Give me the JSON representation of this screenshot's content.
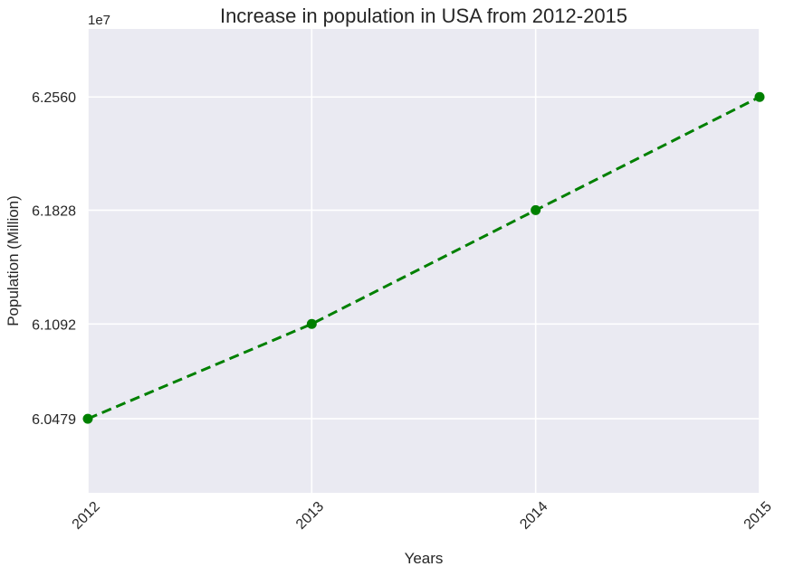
{
  "chart_data": {
    "type": "line",
    "title": "Increase in population in USA from 2012-2015",
    "xlabel": "Years",
    "ylabel": "Population (Million)",
    "y_offset_label": "1e7",
    "x": [
      2012,
      2013,
      2014,
      2015
    ],
    "x_tick_labels": [
      "2012",
      "2013",
      "2014",
      "2015"
    ],
    "series": [
      {
        "values": [
          60479000,
          61092000,
          61828000,
          62560000
        ]
      }
    ],
    "y_ticks": [
      60479000,
      61092000,
      61828000,
      62560000
    ],
    "y_tick_labels": [
      "6.0479",
      "6.1092",
      "6.1828",
      "6.2560"
    ],
    "xlim": [
      2012,
      2015
    ],
    "ylim": [
      60000000,
      63000000
    ],
    "grid": true,
    "line_style": "dashed",
    "marker": "circle",
    "colors": {
      "series": "#008000",
      "background": "#eaeaf2",
      "grid": "#ffffff",
      "text": "#262626"
    }
  }
}
